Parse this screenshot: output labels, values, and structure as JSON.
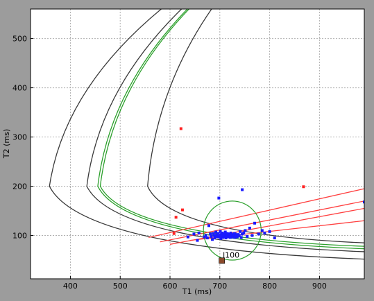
{
  "chart_data": {
    "type": "scatter",
    "title": "",
    "xlabel": "T1 (ms)",
    "ylabel": "T2 (ms)",
    "xlim": [
      320,
      990
    ],
    "ylim": [
      12,
      560
    ],
    "x_ticks": [
      400,
      500,
      600,
      700,
      800,
      900
    ],
    "y_ticks": [
      100,
      200,
      300,
      400,
      500
    ],
    "grid": true,
    "colors": {
      "background": "#9c9c9c",
      "plot_area": "#ffffff",
      "grid": "#b0b0b0",
      "black_curve": "#3a3a3a",
      "green_curve": "#2ca02c",
      "red_line": "#ff4040",
      "blue_points": "#1a1aff",
      "red_points": "#ff2020",
      "marker": "#8b4a2b"
    },
    "black_curves": [
      {
        "vertex_x": 358,
        "vertex_y": 200,
        "upper_end": [
          620,
          590
        ],
        "lower_end": [
          990,
          52
        ]
      },
      {
        "vertex_x": 433,
        "vertex_y": 200,
        "upper_end": [
          655,
          590
        ],
        "lower_end": [
          990,
          67
        ]
      },
      {
        "vertex_x": 555,
        "vertex_y": 200,
        "upper_end": [
          705,
          590
        ],
        "lower_end": [
          990,
          85
        ]
      }
    ],
    "green_curves": [
      {
        "vertex_x": 455,
        "vertex_y": 200,
        "upper_end": [
          665,
          590
        ],
        "lower_end": [
          990,
          73
        ]
      },
      {
        "vertex_x": 460,
        "vertex_y": 200,
        "upper_end": [
          668,
          590
        ],
        "lower_end": [
          990,
          78
        ]
      }
    ],
    "green_ellipse": {
      "cx": 725,
      "cy": 110,
      "rx": 58,
      "ry": 60,
      "rotation_deg": 0
    },
    "red_lines": [
      {
        "x": [
          557,
          990
        ],
        "y": [
          96,
          195
        ]
      },
      {
        "x": [
          580,
          990
        ],
        "y": [
          87,
          170
        ]
      },
      {
        "x": [
          600,
          990
        ],
        "y": [
          82,
          155
        ]
      },
      {
        "x": [
          640,
          990
        ],
        "y": [
          90,
          130
        ]
      }
    ],
    "blue_points": {
      "x": [
        745,
        698,
        636,
        648,
        655,
        658,
        669,
        672,
        675,
        678,
        681,
        683,
        685,
        687,
        689,
        690,
        692,
        694,
        695,
        697,
        698,
        700,
        701,
        702,
        703,
        704,
        705,
        706,
        707,
        708,
        709,
        710,
        711,
        712,
        713,
        714,
        715,
        716,
        717,
        718,
        719,
        720,
        721,
        722,
        723,
        724,
        725,
        726,
        727,
        728,
        729,
        730,
        731,
        732,
        733,
        735,
        737,
        739,
        741,
        743,
        745,
        748,
        751,
        755,
        760,
        765,
        770,
        778,
        785,
        790,
        800,
        810,
        990
      ],
      "y": [
        193,
        176,
        97,
        103,
        90,
        105,
        97,
        100,
        95,
        120,
        103,
        98,
        92,
        104,
        100,
        95,
        107,
        101,
        98,
        104,
        97,
        100,
        108,
        94,
        102,
        99,
        105,
        96,
        101,
        98,
        103,
        100,
        107,
        95,
        102,
        99,
        104,
        97,
        101,
        98,
        103,
        100,
        96,
        105,
        99,
        102,
        97,
        101,
        100,
        98,
        104,
        96,
        103,
        99,
        101,
        97,
        102,
        100,
        108,
        96,
        103,
        105,
        110,
        98,
        115,
        100,
        125,
        103,
        110,
        105,
        108,
        95,
        168
      ]
    },
    "red_points": {
      "x": [
        622,
        625,
        612,
        608,
        868
      ],
      "y": [
        317,
        152,
        137,
        104,
        199
      ]
    },
    "marker_square": {
      "x": 704,
      "y": 49
    },
    "annotations": [
      {
        "text": "l100",
        "x": 706,
        "y": 55
      }
    ]
  }
}
